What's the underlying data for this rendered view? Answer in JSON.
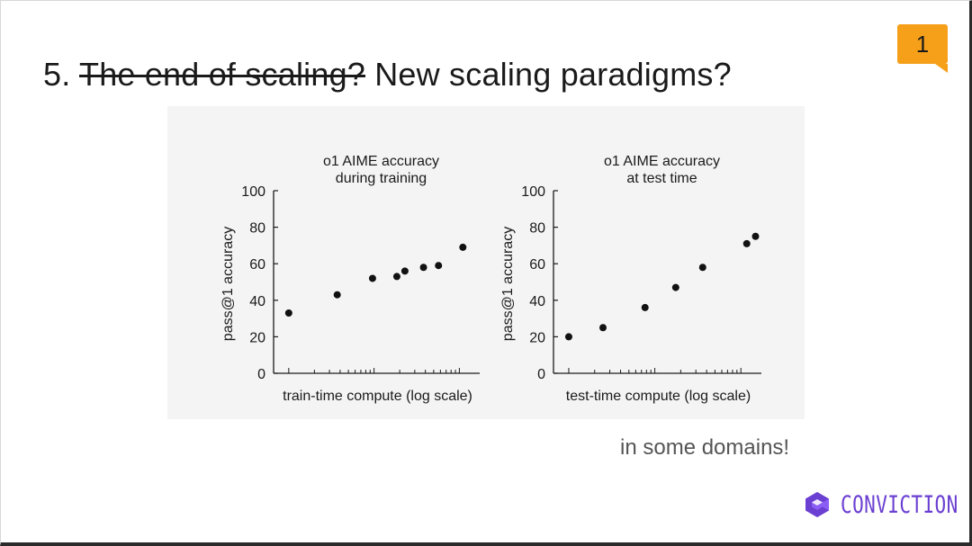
{
  "slide": {
    "number_prefix": "5.",
    "struck_text": "The end of scaling?",
    "title_rest": "New scaling paradigms?",
    "page_badge": "1",
    "caption": "in some domains!",
    "logo_text": "CONVICTION",
    "accent_color": "#6b3fd1",
    "badge_color": "#f6a01a"
  },
  "chart_data": [
    {
      "type": "scatter",
      "title": "o1 AIME accuracy\nduring training",
      "xlabel": "train-time compute (log scale)",
      "ylabel": "pass@1 accuracy",
      "xscale": "log",
      "ylim": [
        0,
        100
      ],
      "yticks": [
        0,
        20,
        40,
        60,
        80,
        100
      ],
      "points": [
        {
          "x": 1,
          "y": 33
        },
        {
          "x": 3.7,
          "y": 43
        },
        {
          "x": 9.6,
          "y": 52
        },
        {
          "x": 18.5,
          "y": 53
        },
        {
          "x": 23,
          "y": 56
        },
        {
          "x": 38,
          "y": 58
        },
        {
          "x": 57,
          "y": 59
        },
        {
          "x": 110,
          "y": 69
        }
      ]
    },
    {
      "type": "scatter",
      "title": "o1 AIME accuracy\nat test time",
      "xlabel": "test-time compute (log scale)",
      "ylabel": "pass@1 accuracy",
      "xscale": "log",
      "ylim": [
        0,
        100
      ],
      "yticks": [
        0,
        20,
        40,
        60,
        80,
        100
      ],
      "points": [
        {
          "x": 1,
          "y": 20
        },
        {
          "x": 2.5,
          "y": 25
        },
        {
          "x": 7.7,
          "y": 36
        },
        {
          "x": 17.5,
          "y": 47
        },
        {
          "x": 36,
          "y": 58
        },
        {
          "x": 117,
          "y": 71
        },
        {
          "x": 148,
          "y": 75
        }
      ]
    }
  ]
}
